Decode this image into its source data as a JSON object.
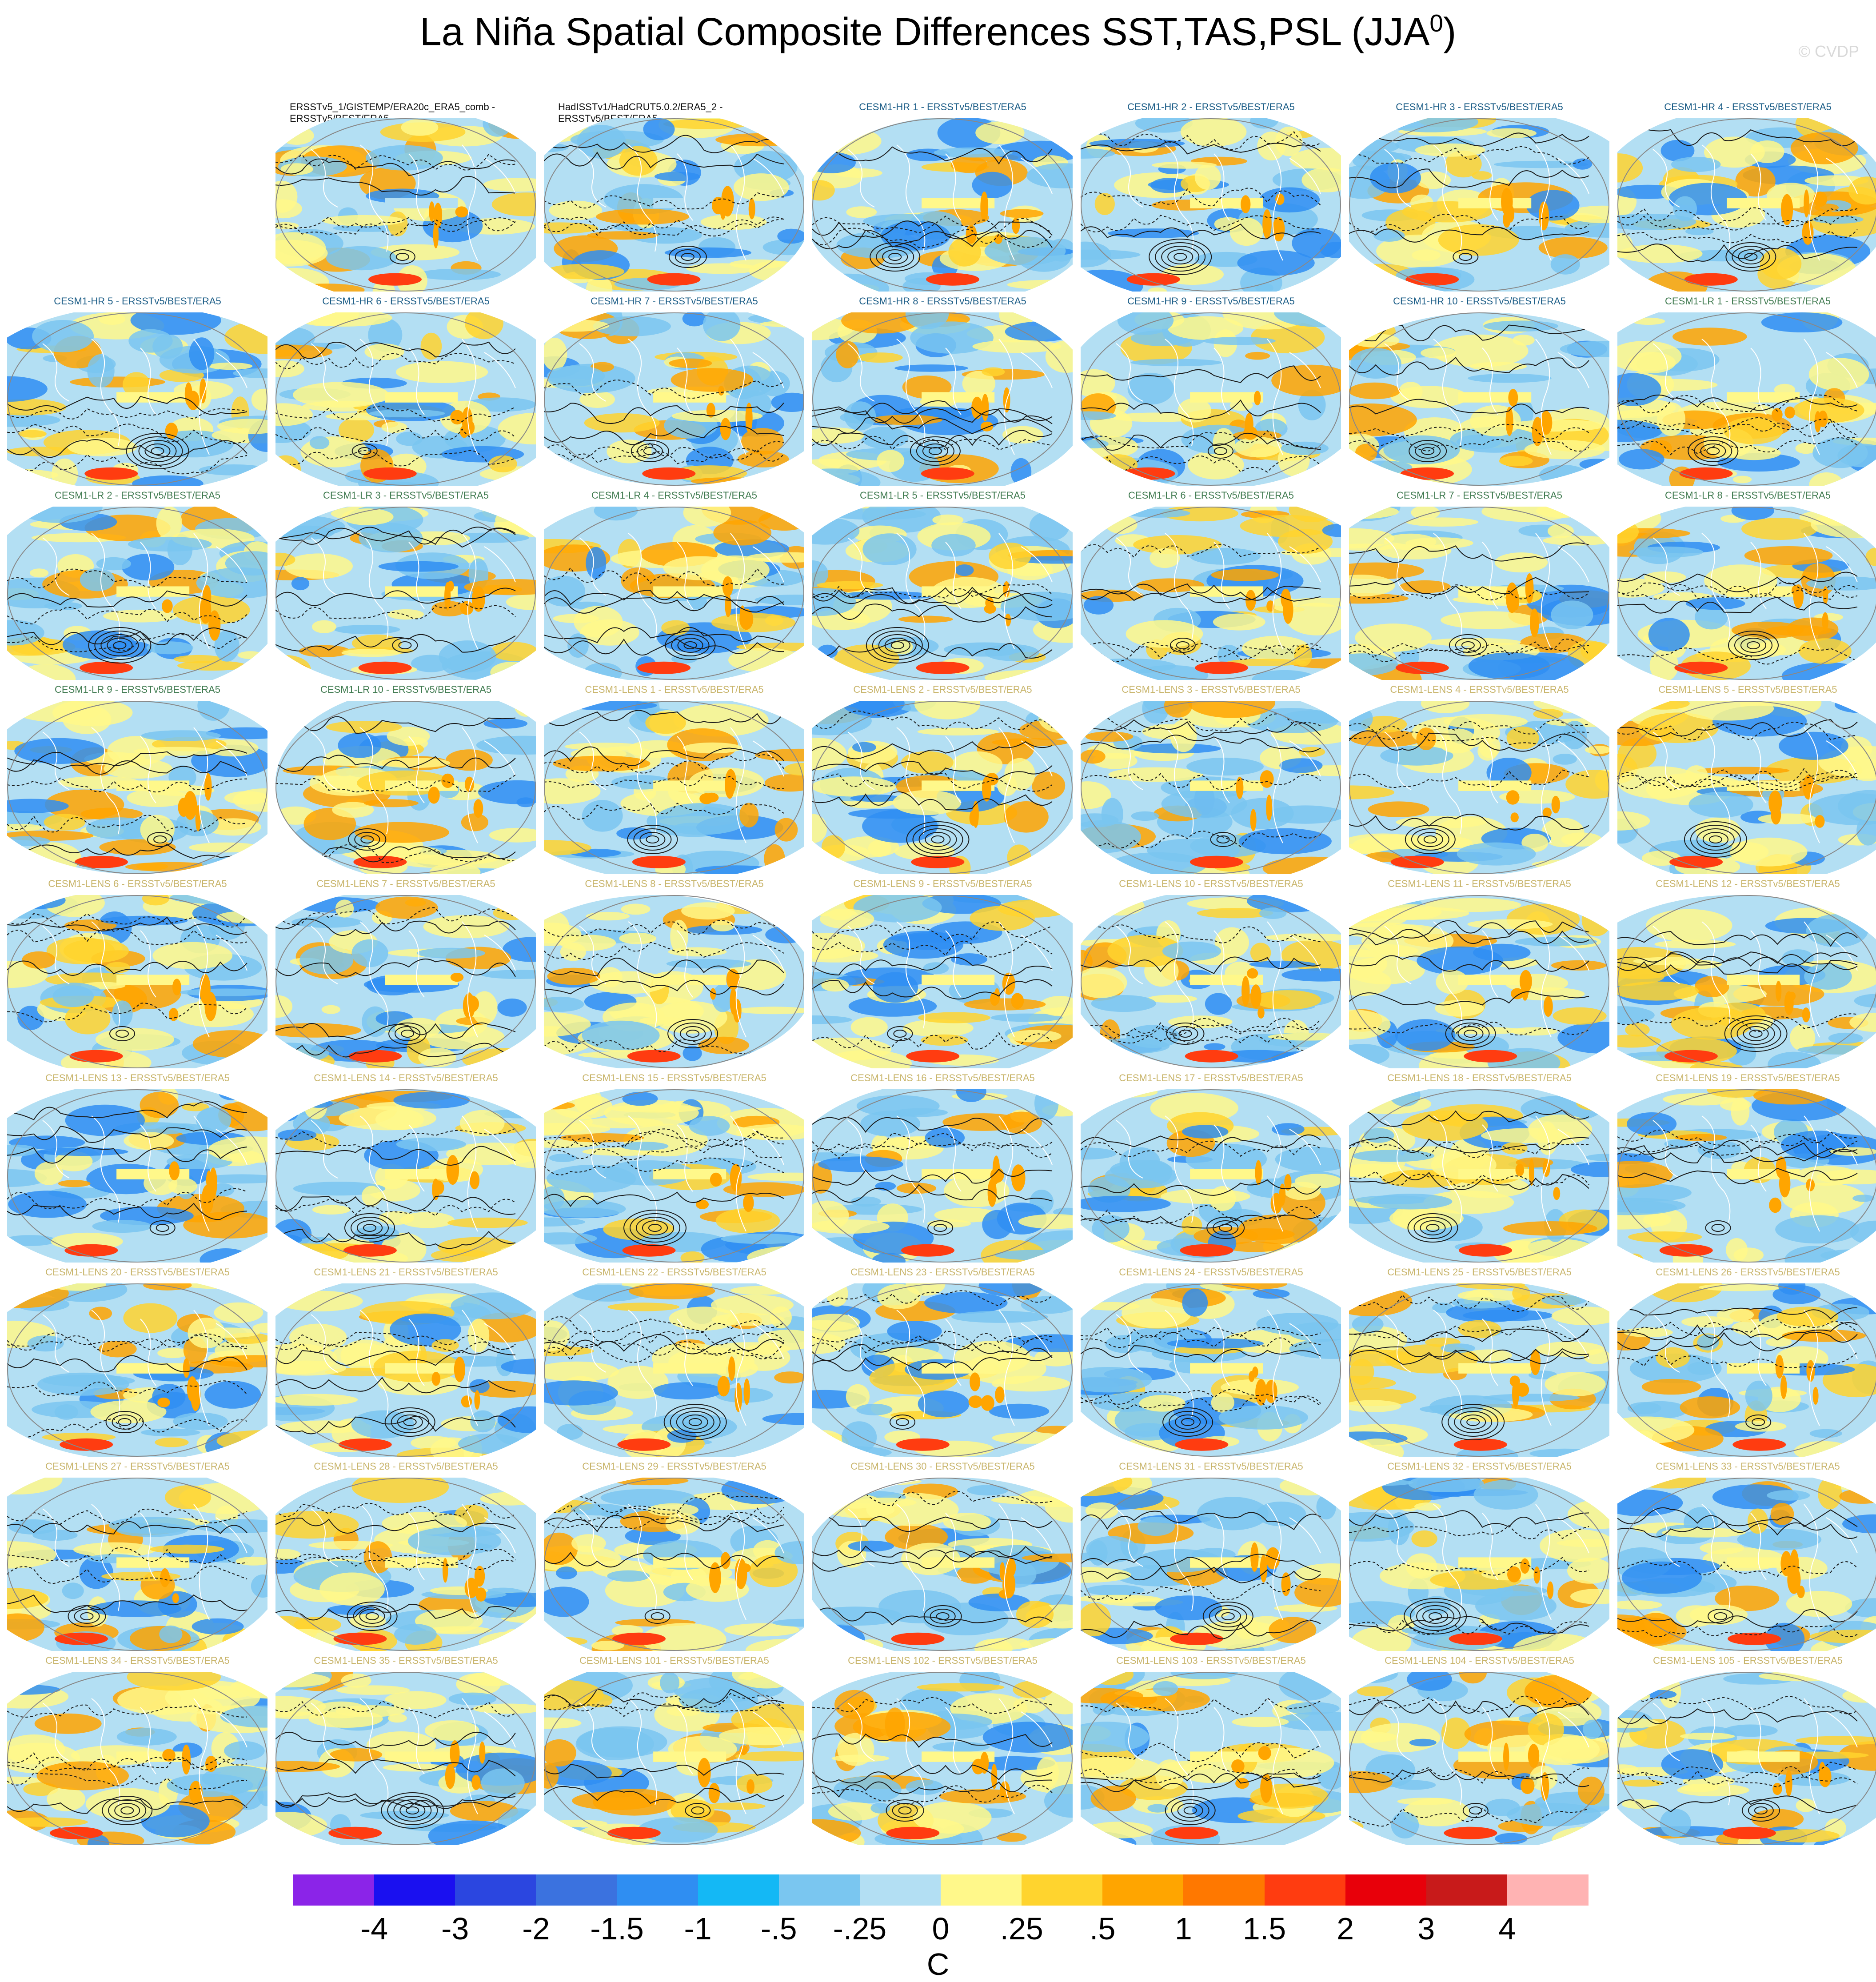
{
  "figure": {
    "title_main": "La Niña Spatial Composite Differences SST,TAS,PSL (JJA",
    "title_sup": "0",
    "title_close": ")",
    "watermark": "© CVDP"
  },
  "panels": [
    {
      "title": "ERSSTv5_1/GISTEMP/ERA20c_ERA5_comb - ERSSTv5/BEST/ERA5",
      "group": "obs"
    },
    {
      "title": "HadISSTv1/HadCRUT5.0.2/ERA5_2 - ERSSTv5/BEST/ERA5",
      "group": "obs"
    },
    {
      "title": "CESM1-HR 1 - ERSSTv5/BEST/ERA5",
      "group": "hr"
    },
    {
      "title": "CESM1-HR 2 - ERSSTv5/BEST/ERA5",
      "group": "hr"
    },
    {
      "title": "CESM1-HR 3 - ERSSTv5/BEST/ERA5",
      "group": "hr"
    },
    {
      "title": "CESM1-HR 4 - ERSSTv5/BEST/ERA5",
      "group": "hr"
    },
    {
      "title": "CESM1-HR 5 - ERSSTv5/BEST/ERA5",
      "group": "hr"
    },
    {
      "title": "CESM1-HR 6 - ERSSTv5/BEST/ERA5",
      "group": "hr"
    },
    {
      "title": "CESM1-HR 7 - ERSSTv5/BEST/ERA5",
      "group": "hr"
    },
    {
      "title": "CESM1-HR 8 - ERSSTv5/BEST/ERA5",
      "group": "hr"
    },
    {
      "title": "CESM1-HR 9 - ERSSTv5/BEST/ERA5",
      "group": "hr"
    },
    {
      "title": "CESM1-HR 10 - ERSSTv5/BEST/ERA5",
      "group": "hr"
    },
    {
      "title": "CESM1-LR 1 - ERSSTv5/BEST/ERA5",
      "group": "lr"
    },
    {
      "title": "CESM1-LR 2 - ERSSTv5/BEST/ERA5",
      "group": "lr"
    },
    {
      "title": "CESM1-LR 3 - ERSSTv5/BEST/ERA5",
      "group": "lr"
    },
    {
      "title": "CESM1-LR 4 - ERSSTv5/BEST/ERA5",
      "group": "lr"
    },
    {
      "title": "CESM1-LR 5 - ERSSTv5/BEST/ERA5",
      "group": "lr"
    },
    {
      "title": "CESM1-LR 6 - ERSSTv5/BEST/ERA5",
      "group": "lr"
    },
    {
      "title": "CESM1-LR 7 - ERSSTv5/BEST/ERA5",
      "group": "lr"
    },
    {
      "title": "CESM1-LR 8 - ERSSTv5/BEST/ERA5",
      "group": "lr"
    },
    {
      "title": "CESM1-LR 9 - ERSSTv5/BEST/ERA5",
      "group": "lr"
    },
    {
      "title": "CESM1-LR 10 - ERSSTv5/BEST/ERA5",
      "group": "lr"
    },
    {
      "title": "CESM1-LENS 1 - ERSSTv5/BEST/ERA5",
      "group": "lens"
    },
    {
      "title": "CESM1-LENS 2 - ERSSTv5/BEST/ERA5",
      "group": "lens"
    },
    {
      "title": "CESM1-LENS 3 - ERSSTv5/BEST/ERA5",
      "group": "lens"
    },
    {
      "title": "CESM1-LENS 4 - ERSSTv5/BEST/ERA5",
      "group": "lens"
    },
    {
      "title": "CESM1-LENS 5 - ERSSTv5/BEST/ERA5",
      "group": "lens"
    },
    {
      "title": "CESM1-LENS 6 - ERSSTv5/BEST/ERA5",
      "group": "lens"
    },
    {
      "title": "CESM1-LENS 7 - ERSSTv5/BEST/ERA5",
      "group": "lens"
    },
    {
      "title": "CESM1-LENS 8 - ERSSTv5/BEST/ERA5",
      "group": "lens"
    },
    {
      "title": "CESM1-LENS 9 - ERSSTv5/BEST/ERA5",
      "group": "lens"
    },
    {
      "title": "CESM1-LENS 10 - ERSSTv5/BEST/ERA5",
      "group": "lens"
    },
    {
      "title": "CESM1-LENS 11 - ERSSTv5/BEST/ERA5",
      "group": "lens"
    },
    {
      "title": "CESM1-LENS 12 - ERSSTv5/BEST/ERA5",
      "group": "lens"
    },
    {
      "title": "CESM1-LENS 13 - ERSSTv5/BEST/ERA5",
      "group": "lens"
    },
    {
      "title": "CESM1-LENS 14 - ERSSTv5/BEST/ERA5",
      "group": "lens"
    },
    {
      "title": "CESM1-LENS 15 - ERSSTv5/BEST/ERA5",
      "group": "lens"
    },
    {
      "title": "CESM1-LENS 16 - ERSSTv5/BEST/ERA5",
      "group": "lens"
    },
    {
      "title": "CESM1-LENS 17 - ERSSTv5/BEST/ERA5",
      "group": "lens"
    },
    {
      "title": "CESM1-LENS 18 - ERSSTv5/BEST/ERA5",
      "group": "lens"
    },
    {
      "title": "CESM1-LENS 19 - ERSSTv5/BEST/ERA5",
      "group": "lens"
    },
    {
      "title": "CESM1-LENS 20 - ERSSTv5/BEST/ERA5",
      "group": "lens"
    },
    {
      "title": "CESM1-LENS 21 - ERSSTv5/BEST/ERA5",
      "group": "lens"
    },
    {
      "title": "CESM1-LENS 22 - ERSSTv5/BEST/ERA5",
      "group": "lens"
    },
    {
      "title": "CESM1-LENS 23 - ERSSTv5/BEST/ERA5",
      "group": "lens"
    },
    {
      "title": "CESM1-LENS 24 - ERSSTv5/BEST/ERA5",
      "group": "lens"
    },
    {
      "title": "CESM1-LENS 25 - ERSSTv5/BEST/ERA5",
      "group": "lens"
    },
    {
      "title": "CESM1-LENS 26 - ERSSTv5/BEST/ERA5",
      "group": "lens"
    },
    {
      "title": "CESM1-LENS 27 - ERSSTv5/BEST/ERA5",
      "group": "lens"
    },
    {
      "title": "CESM1-LENS 28 - ERSSTv5/BEST/ERA5",
      "group": "lens"
    },
    {
      "title": "CESM1-LENS 29 - ERSSTv5/BEST/ERA5",
      "group": "lens"
    },
    {
      "title": "CESM1-LENS 30 - ERSSTv5/BEST/ERA5",
      "group": "lens"
    },
    {
      "title": "CESM1-LENS 31 - ERSSTv5/BEST/ERA5",
      "group": "lens"
    },
    {
      "title": "CESM1-LENS 32 - ERSSTv5/BEST/ERA5",
      "group": "lens"
    },
    {
      "title": "CESM1-LENS 33 - ERSSTv5/BEST/ERA5",
      "group": "lens"
    },
    {
      "title": "CESM1-LENS 34 - ERSSTv5/BEST/ERA5",
      "group": "lens"
    },
    {
      "title": "CESM1-LENS 35 - ERSSTv5/BEST/ERA5",
      "group": "lens"
    },
    {
      "title": "CESM1-LENS 101 - ERSSTv5/BEST/ERA5",
      "group": "lens"
    },
    {
      "title": "CESM1-LENS 102 - ERSSTv5/BEST/ERA5",
      "group": "lens"
    },
    {
      "title": "CESM1-LENS 103 - ERSSTv5/BEST/ERA5",
      "group": "lens"
    },
    {
      "title": "CESM1-LENS 104 - ERSSTv5/BEST/ERA5",
      "group": "lens"
    },
    {
      "title": "CESM1-LENS 105 - ERSSTv5/BEST/ERA5",
      "group": "lens"
    }
  ],
  "colorbar": {
    "colors": [
      "#8b24e8",
      "#1a10f0",
      "#2b46e0",
      "#3b72df",
      "#2f8ef2",
      "#14b8f5",
      "#7ac6f0",
      "#b3dff3",
      "#fff88a",
      "#ffd42e",
      "#ffa500",
      "#ff7800",
      "#ff3c10",
      "#e8000a",
      "#c81a1a",
      "#ffb3b3"
    ],
    "labels": [
      "-4",
      "-3",
      "-2",
      "-1.5",
      "-1",
      "-.5",
      "-.25",
      "0",
      ".25",
      ".5",
      "1",
      "1.5",
      "2",
      "3",
      "4"
    ],
    "unit": "C"
  }
}
